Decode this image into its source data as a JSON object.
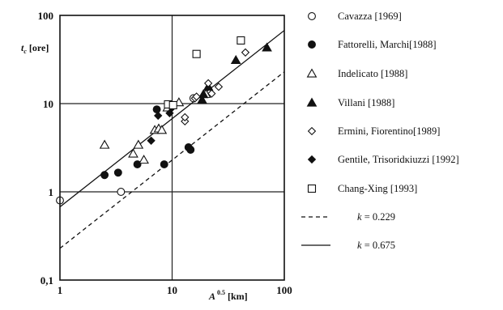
{
  "chart_data": {
    "type": "scatter",
    "xlabel": "A",
    "xlabel_sup": "0.5",
    "xlabel_unit": "[km]",
    "ylabel": "t",
    "ylabel_sub": "c",
    "ylabel_unit": "[ore]",
    "x_scale": "log",
    "y_scale": "log",
    "xlim": [
      1,
      100
    ],
    "ylim": [
      0.1,
      100
    ],
    "x_ticks": [
      1,
      10,
      100
    ],
    "x_tick_labels": [
      "1",
      "10",
      "100"
    ],
    "y_ticks": [
      0.1,
      1,
      10,
      100
    ],
    "y_tick_labels": [
      "0,1",
      "1",
      "10",
      "100"
    ],
    "grid": true,
    "legend_position": "right",
    "series": [
      {
        "name": "Cavazza [1969]",
        "marker": "open-circle",
        "points": [
          [
            1.0,
            0.8
          ],
          [
            3.5,
            1.0
          ],
          [
            15.5,
            11.5
          ]
        ]
      },
      {
        "name": "Fattorelli, Marchi[1988]",
        "marker": "filled-circle",
        "points": [
          [
            2.5,
            1.55
          ],
          [
            3.3,
            1.65
          ],
          [
            4.9,
            2.05
          ],
          [
            8.5,
            2.05
          ],
          [
            14.0,
            3.2
          ],
          [
            14.6,
            3.0
          ],
          [
            7.3,
            8.6
          ],
          [
            9.5,
            9.5
          ]
        ]
      },
      {
        "name": "Indelicato [1988]",
        "marker": "open-triangle",
        "points": [
          [
            2.5,
            3.4
          ],
          [
            4.5,
            2.7
          ],
          [
            5.0,
            3.4
          ],
          [
            5.6,
            2.3
          ],
          [
            7.0,
            5.0
          ],
          [
            7.6,
            5.2
          ],
          [
            8.1,
            5.0
          ],
          [
            9.1,
            9.0
          ],
          [
            11.5,
            10.3
          ],
          [
            20.0,
            12.8
          ]
        ]
      },
      {
        "name": "Villani [1988]",
        "marker": "filled-triangle",
        "points": [
          [
            18.5,
            11.0
          ],
          [
            19.0,
            12.7
          ],
          [
            21.0,
            15.5
          ],
          [
            37.0,
            31.0
          ],
          [
            70.0,
            43.0
          ]
        ]
      },
      {
        "name": "Ermini, Fiorentino[1989]",
        "marker": "open-diamond",
        "points": [
          [
            13.0,
            6.3
          ],
          [
            13.0,
            7.0
          ],
          [
            16.0,
            11.5
          ],
          [
            16.5,
            12.0
          ],
          [
            21.0,
            17.0
          ],
          [
            22.5,
            13.0
          ],
          [
            26.0,
            15.5
          ],
          [
            45.0,
            38.0
          ]
        ]
      },
      {
        "name": "Gentile, Trisoridĸiuzzi [1992]",
        "marker": "filled-diamond",
        "points": [
          [
            6.5,
            3.8
          ],
          [
            7.5,
            7.3
          ],
          [
            9.5,
            7.8
          ],
          [
            10.0,
            9.0
          ]
        ]
      },
      {
        "name": "Chang-Xing  [1993]",
        "marker": "open-square",
        "points": [
          [
            9.2,
            9.8
          ],
          [
            10.2,
            9.6
          ],
          [
            16.5,
            36.5
          ],
          [
            41.0,
            52.0
          ]
        ]
      },
      {
        "name": "k = 0.229",
        "type": "line",
        "style": "dashed",
        "points": [
          [
            1,
            0.229
          ],
          [
            100,
            22.9
          ]
        ]
      },
      {
        "name": "k = 0.675",
        "type": "line",
        "style": "solid",
        "points": [
          [
            1,
            0.675
          ],
          [
            100,
            67.5
          ]
        ]
      }
    ]
  }
}
